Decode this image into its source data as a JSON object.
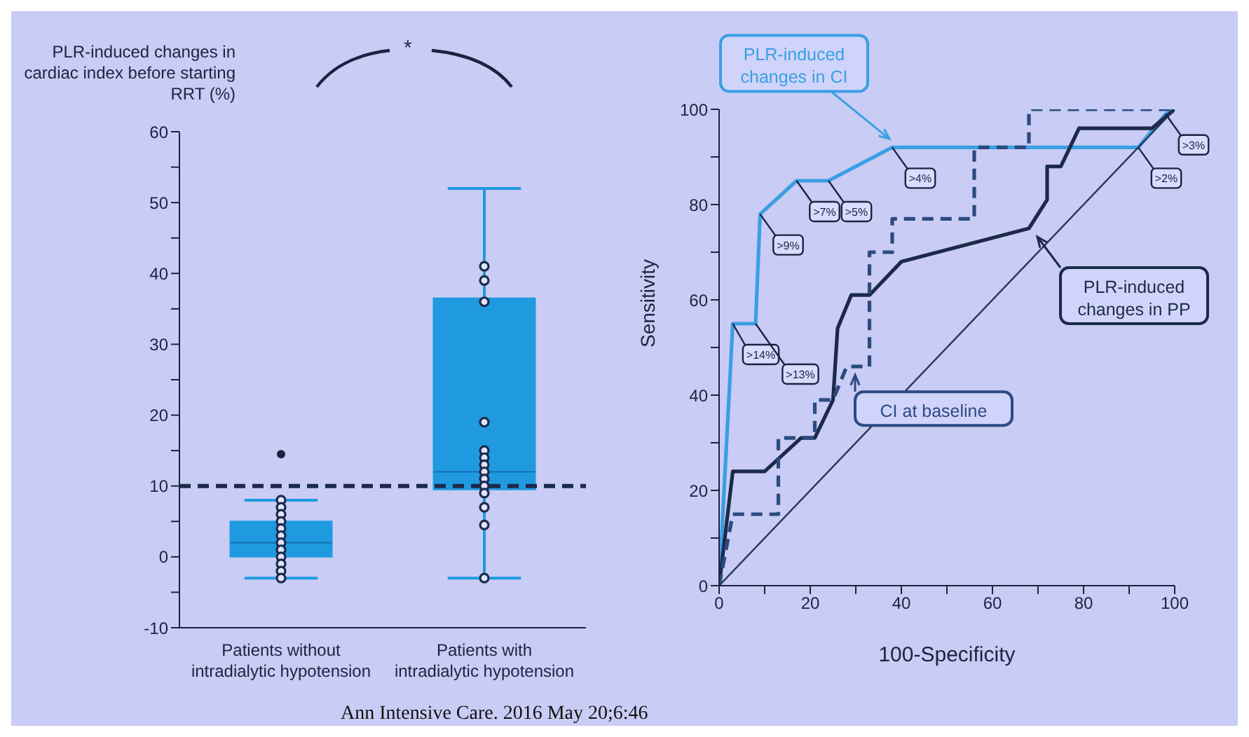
{
  "chart_data": [
    {
      "type": "box",
      "categories": [
        "Patients without intradialytic hypotension",
        "Patients with intradialytic hypotension"
      ],
      "ylabel": "PLR-induced changes in cardiac index before starting RRT (%)",
      "ylim": [
        -10,
        60
      ],
      "yticks": [
        -10,
        {
          "value": -5,
          "label": null
        },
        0,
        {
          "value": 5,
          "label": null
        },
        10,
        {
          "value": 15,
          "label": null
        },
        20,
        {
          "value": 25,
          "label": null
        },
        30,
        {
          "value": 35,
          "label": null
        },
        40,
        {
          "value": 45,
          "label": null
        },
        50,
        {
          "value": 55,
          "label": null
        },
        60
      ],
      "marker": "circle",
      "series": [
        {
          "type": "box",
          "color": "#1f9ae0",
          "boxes": [
            {
              "low": -3,
              "q1": 0,
              "median": 2,
              "q3": 5,
              "high": 8,
              "outliers": [
                14.5
              ]
            },
            {
              "low": -3,
              "q1": 9.5,
              "median": 12,
              "q3": 36.5,
              "high": 52
            }
          ]
        },
        {
          "type": "scatter",
          "color": "#1c2a4a",
          "x": [
            "Patients without intradialytic hypotension",
            "Patients without intradialytic hypotension",
            "Patients without intradialytic hypotension",
            "Patients without intradialytic hypotension",
            "Patients without intradialytic hypotension",
            "Patients without intradialytic hypotension",
            "Patients without intradialytic hypotension",
            "Patients without intradialytic hypotension",
            "Patients without intradialytic hypotension",
            "Patients without intradialytic hypotension",
            "Patients without intradialytic hypotension",
            "Patients without intradialytic hypotension",
            "Patients with intradialytic hypotension",
            "Patients with intradialytic hypotension",
            "Patients with intradialytic hypotension",
            "Patients with intradialytic hypotension",
            "Patients with intradialytic hypotension",
            "Patients with intradialytic hypotension",
            "Patients with intradialytic hypotension",
            "Patients with intradialytic hypotension",
            "Patients with intradialytic hypotension",
            "Patients with intradialytic hypotension",
            "Patients with intradialytic hypotension",
            "Patients with intradialytic hypotension",
            "Patients with intradialytic hypotension",
            "Patients with intradialytic hypotension"
          ],
          "values": [
            8,
            7,
            6,
            5,
            4,
            3,
            2,
            1,
            0,
            -1,
            -2,
            -3,
            41,
            39,
            36,
            19,
            15,
            14,
            13,
            12,
            11,
            10,
            9,
            7,
            4.5,
            -3
          ]
        }
      ],
      "ref_lines": [
        {
          "axis": "y",
          "value": 10,
          "color": "#1c2a4a",
          "line_style": "dashed"
        }
      ],
      "annotations": [
        "*",
        "Ann Intensive Care. 2016 May 20;6:46"
      ]
    },
    {
      "type": "line",
      "xlabel": "100-Specificity",
      "ylabel": "Sensitivity",
      "xlim": [
        0,
        100
      ],
      "ylim": [
        0,
        100
      ],
      "xticks": [
        0,
        {
          "value": 10,
          "label": null
        },
        20,
        {
          "value": 30,
          "label": null
        },
        40,
        {
          "value": 50,
          "label": null
        },
        60,
        {
          "value": 70,
          "label": null
        },
        80,
        {
          "value": 90,
          "label": null
        },
        100
      ],
      "yticks": [
        0,
        {
          "value": 10,
          "label": null
        },
        20,
        {
          "value": 30,
          "label": null
        },
        40,
        {
          "value": 50,
          "label": null
        },
        60,
        {
          "value": 70,
          "label": null
        },
        80,
        {
          "value": 90,
          "label": null
        },
        100
      ],
      "marker": "none",
      "series": [
        {
          "name": "PLR-induced changes in CI",
          "color": "#3a9fe3",
          "line_style": "solid",
          "x": [
            0,
            3,
            8,
            9,
            17,
            24,
            38,
            92,
            98,
            100
          ],
          "values": [
            0,
            55,
            55,
            78,
            85,
            85,
            92,
            92,
            99,
            100
          ]
        },
        {
          "name": "PLR-induced changes in PP",
          "color": "#1c2a4a",
          "line_style": "solid",
          "x": [
            0,
            3,
            10,
            18,
            21,
            25,
            26,
            29,
            33,
            40,
            68,
            72,
            72,
            75,
            79,
            95,
            100
          ],
          "values": [
            0,
            24,
            24,
            31,
            31,
            39,
            54,
            61,
            61,
            68,
            75,
            81,
            88,
            88,
            96,
            96,
            100
          ]
        },
        {
          "name": "CI at baseline",
          "color": "#2b4a80",
          "line_style": "dashed",
          "x": [
            0,
            3,
            13,
            13,
            21,
            21,
            25,
            28,
            33,
            33,
            38,
            38,
            56,
            56,
            68,
            68,
            100
          ],
          "values": [
            0,
            15,
            15,
            31,
            31,
            39,
            39,
            46,
            46,
            70,
            70,
            77,
            77,
            92,
            92,
            100,
            100
          ]
        },
        {
          "color": "#2a3555",
          "line_style": "solid",
          "x": [
            0,
            100
          ],
          "values": [
            0,
            100
          ]
        }
      ],
      "annotations": [
        {
          "text": ">14%",
          "x": 3,
          "y": 55
        },
        {
          "text": ">13%",
          "x": 8,
          "y": 55
        },
        {
          "text": ">9%",
          "x": 9,
          "y": 78
        },
        {
          "text": ">7%",
          "x": 17,
          "y": 85
        },
        {
          "text": ">5%",
          "x": 24,
          "y": 85
        },
        {
          "text": ">4%",
          "x": 38,
          "y": 92
        },
        {
          "text": ">2%",
          "x": 92,
          "y": 92
        },
        {
          "text": ">3%",
          "x": 98,
          "y": 99
        }
      ]
    }
  ]
}
